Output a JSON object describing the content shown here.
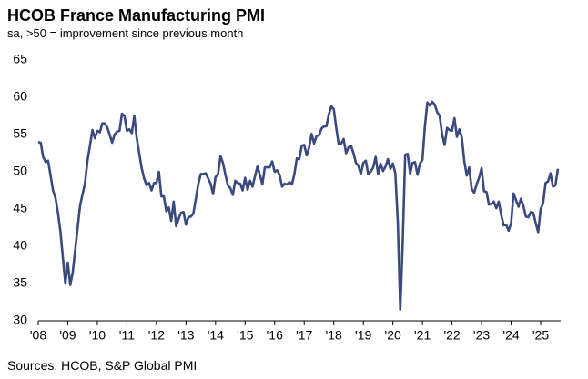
{
  "chart_data": {
    "type": "line",
    "title": "HCOB France Manufacturing PMI",
    "subtitle": "sa, >50 = improvement since previous month",
    "source": "Sources: HCOB, S&P Global PMI",
    "color": "#3b4a7e",
    "ylim": [
      30,
      65
    ],
    "yticks": [
      30,
      35,
      40,
      45,
      50,
      55,
      60,
      65
    ],
    "categories": [
      "'08",
      null,
      null,
      null,
      null,
      null,
      null,
      null,
      null,
      null,
      null,
      null,
      "'09",
      null,
      null,
      null,
      null,
      null,
      null,
      null,
      null,
      null,
      null,
      null,
      "'10",
      null,
      null,
      null,
      null,
      null,
      null,
      null,
      null,
      null,
      null,
      null,
      "'11",
      null,
      null,
      null,
      null,
      null,
      null,
      null,
      null,
      null,
      null,
      null,
      "'12",
      null,
      null,
      null,
      null,
      null,
      null,
      null,
      null,
      null,
      null,
      null,
      "'13",
      null,
      null,
      null,
      null,
      null,
      null,
      null,
      null,
      null,
      null,
      null,
      "'14",
      null,
      null,
      null,
      null,
      null,
      null,
      null,
      null,
      null,
      null,
      null,
      "'15",
      null,
      null,
      null,
      null,
      null,
      null,
      null,
      null,
      null,
      null,
      null,
      "'16",
      null,
      null,
      null,
      null,
      null,
      null,
      null,
      null,
      null,
      null,
      null,
      "'17",
      null,
      null,
      null,
      null,
      null,
      null,
      null,
      null,
      null,
      null,
      null,
      "'18",
      null,
      null,
      null,
      null,
      null,
      null,
      null,
      null,
      null,
      null,
      null,
      "'19",
      null,
      null,
      null,
      null,
      null,
      null,
      null,
      null,
      null,
      null,
      null,
      "'20",
      null,
      null,
      null,
      null,
      null,
      null,
      null,
      null,
      null,
      null,
      null,
      "'21",
      null,
      null,
      null,
      null,
      null,
      null,
      null,
      null,
      null,
      null,
      null,
      "'22",
      null,
      null,
      null,
      null,
      null,
      null,
      null,
      null,
      null,
      null,
      null,
      "'23",
      null,
      null,
      null,
      null,
      null,
      null,
      null,
      null,
      null,
      null,
      null,
      "'24",
      null,
      null,
      null,
      null,
      null,
      null,
      null,
      null,
      null,
      null,
      null,
      "'25",
      null,
      null,
      null,
      null,
      null,
      null,
      null
    ],
    "values": [
      54.0,
      53.9,
      52.0,
      51.3,
      51.5,
      49.5,
      47.5,
      46.5,
      44.5,
      42.0,
      38.5,
      35.0,
      37.8,
      34.8,
      36.5,
      39.5,
      42.5,
      45.5,
      47.0,
      48.5,
      51.5,
      53.5,
      55.6,
      54.5,
      55.5,
      55.3,
      56.5,
      56.5,
      56.0,
      55.0,
      53.9,
      55.0,
      55.4,
      55.5,
      57.8,
      57.5,
      55.5,
      55.7,
      55.2,
      57.5,
      54.5,
      52.5,
      50.5,
      49.1,
      48.2,
      48.5,
      47.5,
      48.5,
      48.5,
      50.0,
      46.7,
      46.7,
      44.7,
      45.2,
      43.4,
      46.0,
      42.7,
      43.7,
      44.5,
      44.6,
      42.9,
      43.9,
      44.0,
      44.4,
      46.4,
      48.4,
      49.7,
      49.7,
      49.8,
      49.1,
      48.4,
      47.0,
      49.3,
      49.7,
      52.1,
      51.2,
      49.6,
      48.2,
      47.8,
      46.9,
      48.8,
      48.5,
      48.4,
      47.5,
      49.2,
      47.6,
      48.8,
      48.0,
      49.4,
      50.7,
      49.6,
      48.3,
      50.6,
      50.6,
      50.6,
      51.4,
      50.0,
      50.2,
      49.6,
      48.0,
      48.4,
      48.3,
      48.6,
      48.3,
      49.7,
      51.8,
      51.7,
      53.5,
      53.6,
      52.2,
      53.3,
      55.1,
      53.8,
      54.8,
      54.9,
      55.8,
      56.1,
      56.1,
      57.7,
      58.8,
      58.4,
      55.9,
      53.7,
      53.8,
      54.4,
      52.5,
      53.3,
      53.5,
      52.5,
      51.2,
      50.8,
      49.7,
      51.2,
      51.5,
      49.7,
      50.0,
      50.6,
      52.0,
      49.7,
      51.1,
      50.1,
      50.7,
      51.7,
      50.4,
      51.1,
      49.8,
      43.2,
      31.5,
      40.6,
      52.3,
      52.4,
      49.8,
      51.2,
      51.3,
      49.6,
      51.1,
      51.6,
      56.1,
      59.3,
      58.9,
      59.4,
      59.0,
      58.0,
      57.5,
      55.0,
      53.6,
      55.9,
      55.6,
      55.5,
      57.2,
      54.7,
      55.7,
      54.6,
      51.4,
      49.5,
      50.6,
      47.7,
      47.2,
      48.3,
      49.2,
      50.5,
      47.4,
      47.3,
      45.6,
      45.7,
      46.0,
      45.1,
      46.0,
      44.2,
      42.8,
      42.9,
      42.1,
      43.1,
      47.1,
      46.2,
      45.3,
      46.4,
      45.4,
      44.0,
      43.9,
      44.6,
      44.5,
      43.1,
      41.9,
      45.0,
      45.8,
      48.5,
      48.7,
      49.8,
      48.0,
      48.2,
      50.4
    ]
  }
}
